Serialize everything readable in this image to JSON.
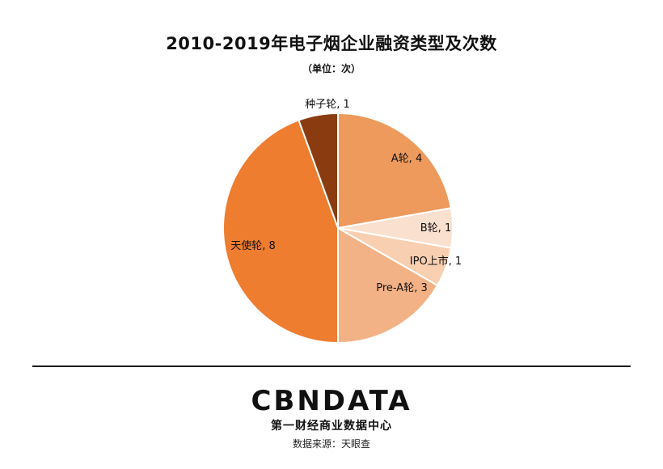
{
  "chart_data": {
    "type": "pie",
    "title": "2010-2019年电子烟企业融资类型及次数",
    "subtitle": "（单位：次）",
    "slices": [
      {
        "label": "A轮",
        "value": 4,
        "color": "#ED9A5C"
      },
      {
        "label": "B轮",
        "value": 1,
        "color": "#FAE0CF"
      },
      {
        "label": "IPO上市",
        "value": 1,
        "color": "#F8CFB0"
      },
      {
        "label": "Pre-A轮",
        "value": 3,
        "color": "#F3B286"
      },
      {
        "label": "天使轮",
        "value": 8,
        "color": "#EE7D2F"
      },
      {
        "label": "种子轮",
        "value": 1,
        "color": "#8A3C10"
      }
    ]
  },
  "footer": {
    "logo": "CBNDATA",
    "tagline": "第一财经商业数据中心",
    "source": "数据来源：天眼查"
  }
}
